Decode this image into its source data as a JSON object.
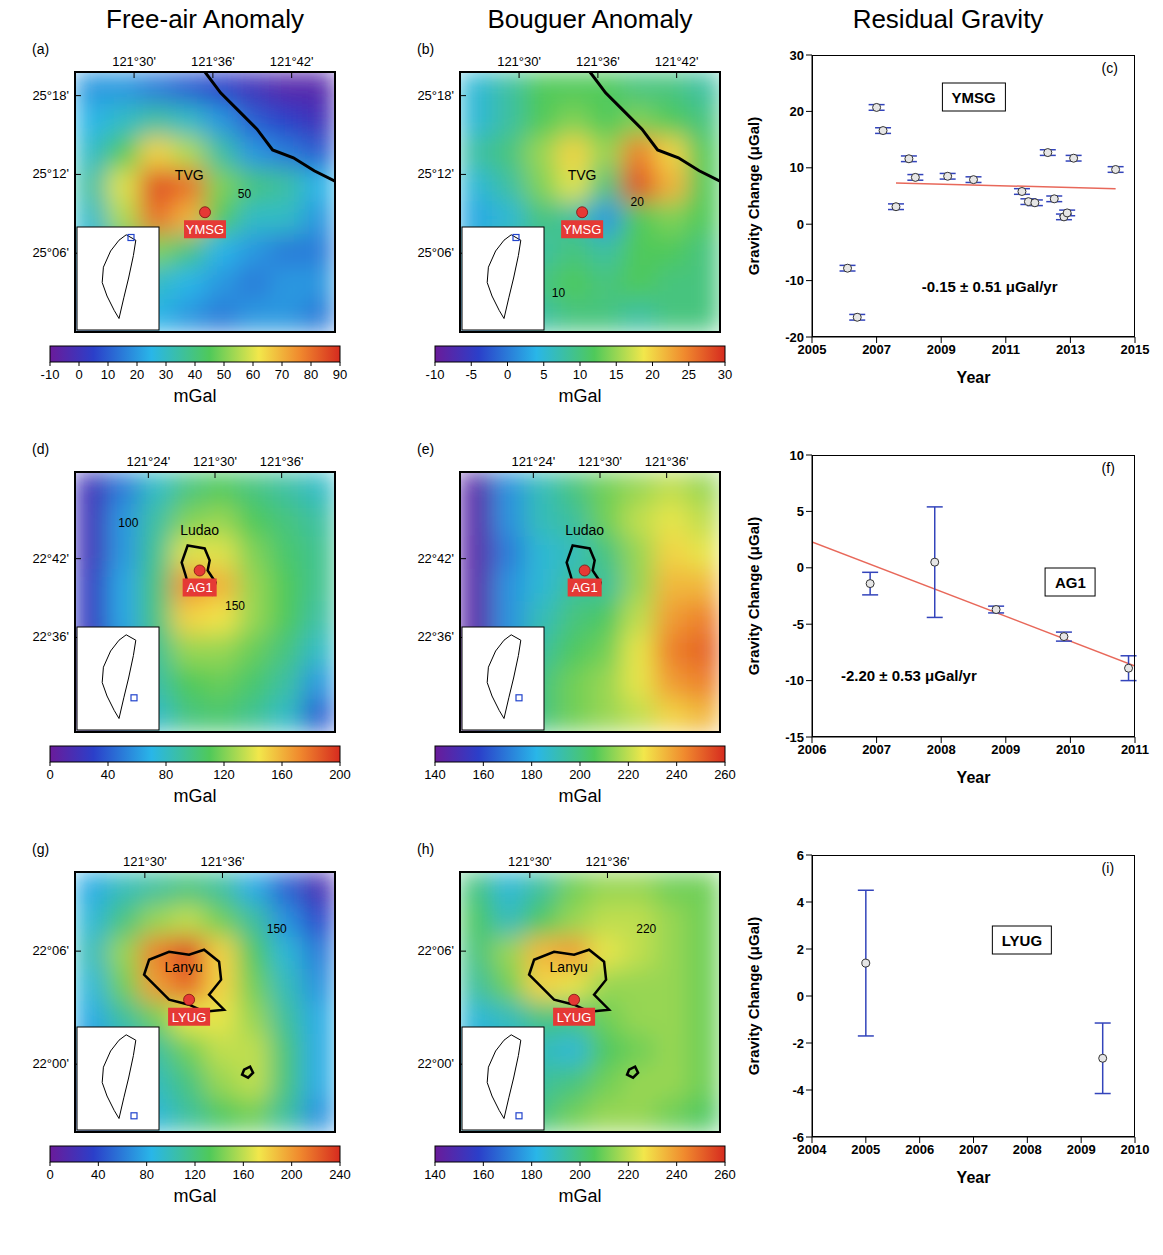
{
  "column_titles": [
    "Free-air Anomaly",
    "Bouguer Anomaly",
    "Residual Gravity"
  ],
  "maps": [
    {
      "letter": "(a)",
      "xlim": [
        121.425,
        121.755
      ],
      "ylim": [
        25.0,
        25.33
      ],
      "xticks": [
        {
          "value": 121.5,
          "label": "121°30'"
        },
        {
          "value": 121.6,
          "label": "121°36'"
        },
        {
          "value": 121.7,
          "label": "121°42'"
        }
      ],
      "yticks": [
        {
          "value": 25.1,
          "label": "25°06'"
        },
        {
          "value": 25.2,
          "label": "25°12'"
        },
        {
          "value": 25.3,
          "label": "25°18'"
        }
      ],
      "cells": [
        [
          20,
          20,
          15,
          10,
          5,
          0,
          -5,
          -5
        ],
        [
          25,
          30,
          35,
          30,
          20,
          10,
          5,
          0
        ],
        [
          30,
          45,
          65,
          55,
          35,
          20,
          15,
          10
        ],
        [
          35,
          60,
          85,
          80,
          50,
          40,
          35,
          25
        ],
        [
          30,
          55,
          80,
          70,
          45,
          30,
          30,
          20
        ],
        [
          25,
          40,
          50,
          40,
          25,
          20,
          15,
          15
        ],
        [
          20,
          30,
          30,
          25,
          20,
          15,
          20,
          20
        ],
        [
          15,
          20,
          25,
          20,
          15,
          20,
          20,
          15
        ]
      ],
      "colorbar": {
        "range": [
          -10,
          90
        ],
        "ticks": [
          -10,
          0,
          10,
          20,
          30,
          40,
          50,
          60,
          70,
          80,
          90
        ],
        "label": "mGal"
      },
      "station": {
        "name": "YMSG",
        "lon": 121.59,
        "lat": 25.152
      },
      "labels": [
        {
          "text": "TVG",
          "lon": 121.57,
          "lat": 25.198
        },
        {
          "text": "50",
          "lon": 121.64,
          "lat": 25.175
        }
      ]
    },
    {
      "letter": "(b)",
      "xlim": [
        121.425,
        121.755
      ],
      "ylim": [
        25.0,
        25.33
      ],
      "xticks": [
        {
          "value": 121.5,
          "label": "121°30'"
        },
        {
          "value": 121.6,
          "label": "121°36'"
        },
        {
          "value": 121.7,
          "label": "121°42'"
        }
      ],
      "yticks": [
        {
          "value": 25.1,
          "label": "25°06'"
        },
        {
          "value": 25.2,
          "label": "25°12'"
        },
        {
          "value": 25.3,
          "label": "25°18'"
        }
      ],
      "cells": [
        [
          5,
          8,
          12,
          12,
          12,
          10,
          10,
          8
        ],
        [
          5,
          8,
          12,
          14,
          12,
          14,
          12,
          10
        ],
        [
          8,
          10,
          15,
          20,
          15,
          25,
          20,
          12
        ],
        [
          5,
          8,
          14,
          18,
          10,
          28,
          22,
          12
        ],
        [
          3,
          5,
          10,
          8,
          2,
          12,
          14,
          12
        ],
        [
          5,
          8,
          8,
          10,
          8,
          12,
          12,
          10
        ],
        [
          3,
          5,
          10,
          12,
          10,
          12,
          10,
          10
        ],
        [
          2,
          3,
          8,
          10,
          10,
          8,
          10,
          10
        ]
      ],
      "colorbar": {
        "range": [
          -10,
          30
        ],
        "ticks": [
          -10,
          -5,
          0,
          5,
          10,
          15,
          20,
          25,
          30
        ],
        "label": "mGal"
      },
      "station": {
        "name": "YMSG",
        "lon": 121.58,
        "lat": 25.152
      },
      "labels": [
        {
          "text": "TVG",
          "lon": 121.58,
          "lat": 25.198
        },
        {
          "text": "20",
          "lon": 121.65,
          "lat": 25.165
        },
        {
          "text": "10",
          "lon": 121.55,
          "lat": 25.05
        }
      ]
    },
    {
      "letter": "(d)",
      "xlim": [
        121.29,
        121.68
      ],
      "ylim": [
        22.48,
        22.81
      ],
      "xticks": [
        {
          "value": 121.4,
          "label": "121°24'"
        },
        {
          "value": 121.5,
          "label": "121°30'"
        },
        {
          "value": 121.6,
          "label": "121°36'"
        }
      ],
      "yticks": [
        {
          "value": 22.6,
          "label": "22°36'"
        },
        {
          "value": 22.7,
          "label": "22°42'"
        }
      ],
      "cells": [
        [
          20,
          50,
          80,
          100,
          110,
          100,
          90,
          80
        ],
        [
          20,
          60,
          90,
          120,
          125,
          110,
          100,
          90
        ],
        [
          20,
          60,
          95,
          140,
          140,
          120,
          105,
          95
        ],
        [
          25,
          65,
          100,
          170,
          160,
          125,
          110,
          95
        ],
        [
          25,
          65,
          100,
          150,
          145,
          125,
          110,
          90
        ],
        [
          20,
          60,
          95,
          125,
          125,
          115,
          100,
          80
        ],
        [
          20,
          55,
          90,
          110,
          115,
          105,
          90,
          60
        ],
        [
          15,
          50,
          80,
          100,
          105,
          95,
          80,
          40
        ]
      ],
      "colorbar": {
        "range": [
          0,
          200
        ],
        "ticks": [
          0,
          40,
          80,
          120,
          160,
          200
        ],
        "label": "mGal"
      },
      "station": {
        "name": "AG1",
        "lon": 121.477,
        "lat": 22.685
      },
      "labels": [
        {
          "text": "Ludao",
          "lon": 121.477,
          "lat": 22.735
        },
        {
          "text": "100",
          "lon": 121.37,
          "lat": 22.745
        },
        {
          "text": "150",
          "lon": 121.53,
          "lat": 22.64
        }
      ]
    },
    {
      "letter": "(e)",
      "xlim": [
        121.29,
        121.68
      ],
      "ylim": [
        22.48,
        22.81
      ],
      "xticks": [
        {
          "value": 121.4,
          "label": "121°24'"
        },
        {
          "value": 121.5,
          "label": "121°30'"
        },
        {
          "value": 121.6,
          "label": "121°36'"
        }
      ],
      "yticks": [
        {
          "value": 22.6,
          "label": "22°36'"
        },
        {
          "value": 22.7,
          "label": "22°42'"
        }
      ],
      "cells": [
        [
          145,
          175,
          190,
          200,
          210,
          215,
          220,
          215
        ],
        [
          145,
          175,
          190,
          195,
          210,
          220,
          225,
          220
        ],
        [
          145,
          170,
          185,
          190,
          200,
          215,
          230,
          225
        ],
        [
          145,
          175,
          185,
          195,
          195,
          215,
          235,
          235
        ],
        [
          145,
          175,
          190,
          200,
          205,
          220,
          240,
          245
        ],
        [
          145,
          175,
          195,
          205,
          210,
          225,
          245,
          250
        ],
        [
          145,
          180,
          200,
          210,
          215,
          225,
          240,
          245
        ],
        [
          145,
          180,
          200,
          210,
          215,
          220,
          230,
          235
        ]
      ],
      "colorbar": {
        "range": [
          140,
          260
        ],
        "ticks": [
          140,
          160,
          180,
          200,
          220,
          240,
          260
        ],
        "label": "mGal"
      },
      "station": {
        "name": "AG1",
        "lon": 121.477,
        "lat": 22.685
      },
      "labels": [
        {
          "text": "Ludao",
          "lon": 121.477,
          "lat": 22.735
        }
      ]
    },
    {
      "letter": "(g)",
      "xlim": [
        121.41,
        121.745
      ],
      "ylim": [
        21.94,
        22.17
      ],
      "xticks": [
        {
          "value": 121.5,
          "label": "121°30'"
        },
        {
          "value": 121.6,
          "label": "121°36'"
        }
      ],
      "yticks": [
        {
          "value": 22.0,
          "label": "22°00'"
        },
        {
          "value": 22.1,
          "label": "22°06'"
        }
      ],
      "cells": [
        [
          80,
          100,
          110,
          120,
          110,
          80,
          50,
          20
        ],
        [
          90,
          120,
          150,
          160,
          140,
          110,
          70,
          40
        ],
        [
          100,
          150,
          210,
          230,
          180,
          130,
          90,
          60
        ],
        [
          90,
          140,
          200,
          220,
          180,
          140,
          100,
          70
        ],
        [
          80,
          110,
          140,
          170,
          170,
          150,
          110,
          80
        ],
        [
          70,
          90,
          110,
          140,
          160,
          160,
          120,
          80
        ],
        [
          60,
          80,
          100,
          120,
          150,
          160,
          120,
          80
        ],
        [
          50,
          70,
          90,
          110,
          130,
          140,
          110,
          70
        ]
      ],
      "colorbar": {
        "range": [
          0,
          240
        ],
        "ticks": [
          0,
          40,
          80,
          120,
          160,
          200,
          240
        ],
        "label": "mGal"
      },
      "station": {
        "name": "LYUG",
        "lon": 121.557,
        "lat": 22.057
      },
      "labels": [
        {
          "text": "Lanyu",
          "lon": 121.55,
          "lat": 22.085
        },
        {
          "text": "150",
          "lon": 121.67,
          "lat": 22.12
        }
      ]
    },
    {
      "letter": "(h)",
      "xlim": [
        121.41,
        121.745
      ],
      "ylim": [
        21.94,
        22.17
      ],
      "xticks": [
        {
          "value": 121.5,
          "label": "121°30'"
        },
        {
          "value": 121.6,
          "label": "121°36'"
        }
      ],
      "yticks": [
        {
          "value": 22.0,
          "label": "22°00'"
        },
        {
          "value": 22.1,
          "label": "22°06'"
        }
      ],
      "cells": [
        [
          200,
          185,
          195,
          210,
          215,
          215,
          210,
          210
        ],
        [
          205,
          190,
          205,
          215,
          220,
          220,
          215,
          210
        ],
        [
          200,
          215,
          235,
          240,
          225,
          220,
          215,
          210
        ],
        [
          195,
          210,
          230,
          225,
          215,
          215,
          215,
          210
        ],
        [
          185,
          190,
          200,
          200,
          210,
          215,
          215,
          210
        ],
        [
          180,
          185,
          190,
          185,
          205,
          210,
          215,
          210
        ],
        [
          180,
          185,
          195,
          200,
          210,
          215,
          215,
          210
        ],
        [
          185,
          190,
          200,
          210,
          215,
          215,
          210,
          205
        ]
      ],
      "colorbar": {
        "range": [
          140,
          260
        ],
        "ticks": [
          140,
          160,
          180,
          200,
          220,
          240,
          260
        ],
        "label": "mGal"
      },
      "station": {
        "name": "LYUG",
        "lon": 121.557,
        "lat": 22.057
      },
      "labels": [
        {
          "text": "Lanyu",
          "lon": 121.55,
          "lat": 22.085
        },
        {
          "text": "220",
          "lon": 121.65,
          "lat": 22.12
        }
      ]
    }
  ],
  "chart_data": [
    {
      "type": "scatter",
      "letter": "(c)",
      "annotations": [
        "YMSG",
        "-0.15 ± 0.51 μGal/yr"
      ],
      "x": [
        2006.1,
        2006.4,
        2007.0,
        2007.2,
        2007.6,
        2008.0,
        2008.2,
        2009.2,
        2010.0,
        2011.5,
        2011.7,
        2011.9,
        2012.3,
        2012.5,
        2012.8,
        2012.9,
        2013.1,
        2014.4
      ],
      "values": [
        -7.8,
        -16.5,
        20.7,
        16.6,
        3.1,
        11.6,
        8.3,
        8.5,
        7.9,
        5.8,
        4.0,
        3.8,
        12.7,
        4.5,
        1.3,
        2.0,
        11.7,
        9.7
      ],
      "errors": [
        0.5,
        0.5,
        0.5,
        0.5,
        0.5,
        0.5,
        0.5,
        0.5,
        0.5,
        0.5,
        0.5,
        0.5,
        0.5,
        0.5,
        0.5,
        0.5,
        0.5,
        0.5
      ],
      "trend": {
        "x": [
          2007.6,
          2014.4
        ],
        "y": [
          7.3,
          6.3
        ]
      },
      "xlim": [
        2005,
        2015
      ],
      "xticks": [
        2005,
        2007,
        2009,
        2011,
        2013,
        2015
      ],
      "ylim": [
        -20,
        30
      ],
      "yticks": [
        -20,
        -10,
        0,
        10,
        20,
        30
      ],
      "xlabel": "Year",
      "ylabel": "Gravity Change (μGal)",
      "color": "#3344bb",
      "marker": "circle"
    },
    {
      "type": "scatter",
      "letter": "(f)",
      "annotations": [
        "AG1",
        "-2.20 ± 0.53 μGal/yr"
      ],
      "x": [
        2006.9,
        2007.9,
        2008.85,
        2009.9,
        2010.9
      ],
      "values": [
        -1.4,
        0.5,
        -3.7,
        -6.1,
        -8.9
      ],
      "errors": [
        1.0,
        4.9,
        0.3,
        0.4,
        1.1
      ],
      "trend": {
        "x": [
          2006,
          2011
        ],
        "y": [
          2.3,
          -8.7
        ]
      },
      "xlim": [
        2006,
        2011
      ],
      "xticks": [
        2006,
        2007,
        2008,
        2009,
        2010,
        2011
      ],
      "ylim": [
        -15,
        10
      ],
      "yticks": [
        -15,
        -10,
        -5,
        0,
        5,
        10
      ],
      "xlabel": "Year",
      "ylabel": "Gravity Change (μGal)",
      "color": "#3344bb",
      "marker": "circle"
    },
    {
      "type": "scatter",
      "letter": "(i)",
      "annotations": [
        "LYUG"
      ],
      "x": [
        2005.0,
        2009.4
      ],
      "values": [
        1.4,
        -2.65
      ],
      "errors": [
        3.1,
        1.5
      ],
      "xlim": [
        2004,
        2010
      ],
      "xticks": [
        2004,
        2005,
        2006,
        2007,
        2008,
        2009,
        2010
      ],
      "ylim": [
        -6,
        6
      ],
      "yticks": [
        -6,
        -4,
        -2,
        0,
        2,
        4,
        6
      ],
      "xlabel": "Year",
      "ylabel": "Gravity Change (μGal)",
      "color": "#3344bb",
      "marker": "circle"
    }
  ]
}
